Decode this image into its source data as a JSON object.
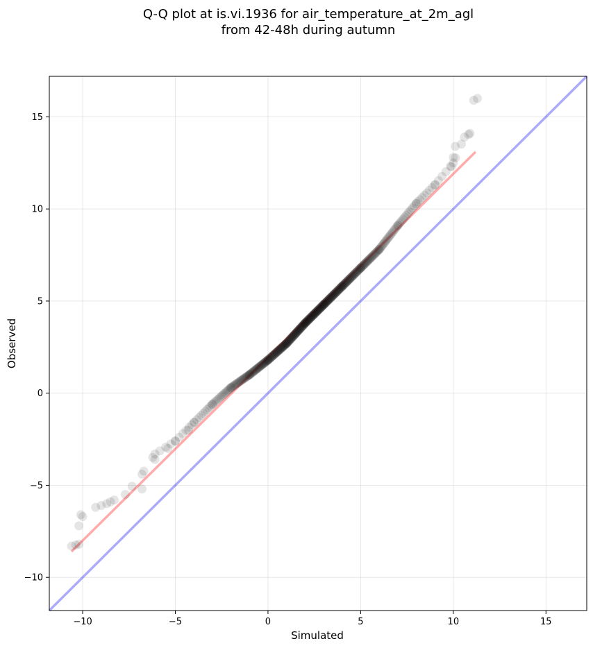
{
  "chart_data": {
    "type": "scatter",
    "title": "Q-Q plot at is.vi.1936 for air_temperature_at_2m_agl",
    "subtitle": "from 42-48h during autumn",
    "xlabel": "Simulated",
    "ylabel": "Observed",
    "xlim": [
      -11.8,
      17.2
    ],
    "ylim": [
      -11.8,
      17.2
    ],
    "xticks": [
      -10,
      -5,
      0,
      5,
      10,
      15
    ],
    "yticks": [
      -10,
      -5,
      0,
      5,
      10,
      15
    ],
    "xtick_labels": [
      "−10",
      "−5",
      "0",
      "5",
      "10",
      "15"
    ],
    "ytick_labels": [
      "−10",
      "−5",
      "0",
      "5",
      "10",
      "15"
    ],
    "grid": true,
    "colors": {
      "points": "#000000",
      "fit_line": "#ff0000",
      "identity_line": "#0000ee"
    },
    "identity_line": {
      "x": [
        -11.8,
        17.2
      ],
      "y": [
        -11.8,
        17.2
      ]
    },
    "fit_line": {
      "x": [
        -10.6,
        11.2
      ],
      "y": [
        -8.6,
        13.1
      ]
    },
    "anchors": [
      [
        -10.6,
        -8.3
      ],
      [
        -10.2,
        -8.2
      ],
      [
        -10.1,
        -6.6
      ],
      [
        -9.0,
        -6.1
      ],
      [
        -8.5,
        -5.9
      ],
      [
        -7.7,
        -5.5
      ],
      [
        -6.8,
        -4.4
      ],
      [
        -6.1,
        -3.3
      ],
      [
        -5.0,
        -2.6
      ],
      [
        -4.0,
        -1.6
      ],
      [
        -3.0,
        -0.6
      ],
      [
        -2.0,
        0.3
      ],
      [
        -1.0,
        1.0
      ],
      [
        0.0,
        1.8
      ],
      [
        1.0,
        2.7
      ],
      [
        2.0,
        3.8
      ],
      [
        3.0,
        4.8
      ],
      [
        4.0,
        5.8
      ],
      [
        5.0,
        6.8
      ],
      [
        6.0,
        7.8
      ],
      [
        7.0,
        9.1
      ],
      [
        8.0,
        10.3
      ],
      [
        9.0,
        11.3
      ],
      [
        10.0,
        12.5
      ],
      [
        10.6,
        13.9
      ],
      [
        10.9,
        14.1
      ],
      [
        11.1,
        15.9
      ]
    ],
    "outliers": [
      [
        -10.2,
        -7.2
      ],
      [
        -10.0,
        -6.7
      ],
      [
        -9.3,
        -6.2
      ],
      [
        -8.7,
        -6.0
      ],
      [
        -6.1,
        -3.6
      ],
      [
        -5.4,
        -3.0
      ],
      [
        -4.3,
        -2.0
      ],
      [
        -6.8,
        -5.2
      ],
      [
        9.9,
        12.3
      ],
      [
        10.0,
        12.8
      ],
      [
        10.1,
        13.4
      ],
      [
        11.3,
        16.0
      ]
    ]
  }
}
